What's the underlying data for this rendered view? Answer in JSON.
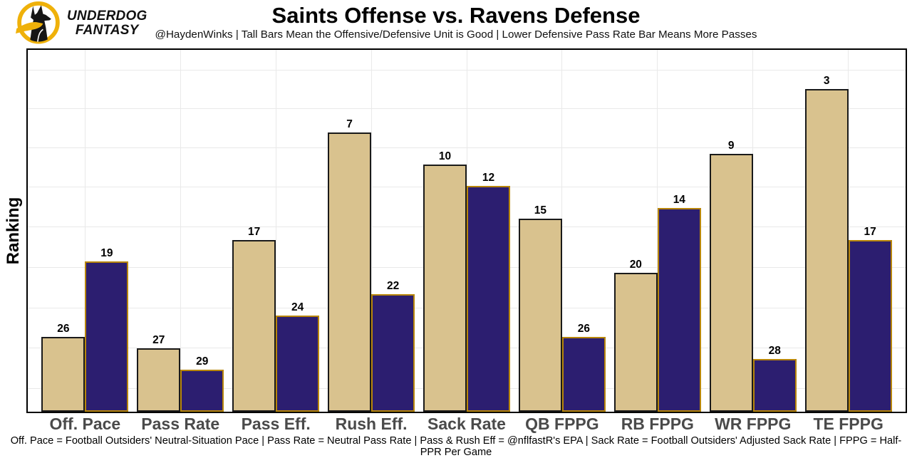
{
  "header": {
    "logo_line1": "UNDERDOG",
    "logo_line2": "FANTASY",
    "title": "Saints Offense vs. Ravens Defense",
    "subtitle": "@HaydenWinks | Tall Bars Mean the Offensive/Defensive Unit is Good | Lower Defensive Pass Rate Bar Means More Passes"
  },
  "chart_data": {
    "type": "bar",
    "title": "Saints Offense vs. Ravens Defense",
    "categories": [
      "Off. Pace",
      "Pass Rate",
      "Pass Eff.",
      "Rush Eff.",
      "Sack Rate",
      "QB FPPG",
      "RB FPPG",
      "WR FPPG",
      "TE FPPG"
    ],
    "series": [
      {
        "name": "Saints Offense",
        "color": "#d9c28e",
        "border_color": "#1a1a1a",
        "values": [
          26,
          27,
          17,
          7,
          10,
          15,
          20,
          9,
          3
        ]
      },
      {
        "name": "Ravens Defense",
        "color": "#2c1e70",
        "border_color": "#b8860b",
        "values": [
          19,
          29,
          24,
          22,
          12,
          26,
          14,
          28,
          17
        ]
      }
    ],
    "xlabel": "",
    "ylabel": "Ranking",
    "values_are_ranks": true,
    "taller_bar_means_better_rank": true,
    "y_tick_labels_shown": false,
    "grid": true,
    "legend": "none"
  },
  "footer": {
    "note": "Off. Pace = Football Outsiders' Neutral-Situation Pace | Pass Rate = Neutral Pass Rate | Pass & Rush Eff = @nflfastR's EPA | Sack Rate = Football Outsiders' Adjusted Sack Rate | FPPG = Half-PPR Per Game"
  },
  "colors": {
    "offense_bar": "#d9c28e",
    "offense_border": "#1a1a1a",
    "defense_bar": "#2c1e70",
    "defense_border": "#b8860b",
    "logo_gold": "#efb10a",
    "gridline": "#e9e9e9",
    "axis_label_gray": "#4a4a4a"
  }
}
